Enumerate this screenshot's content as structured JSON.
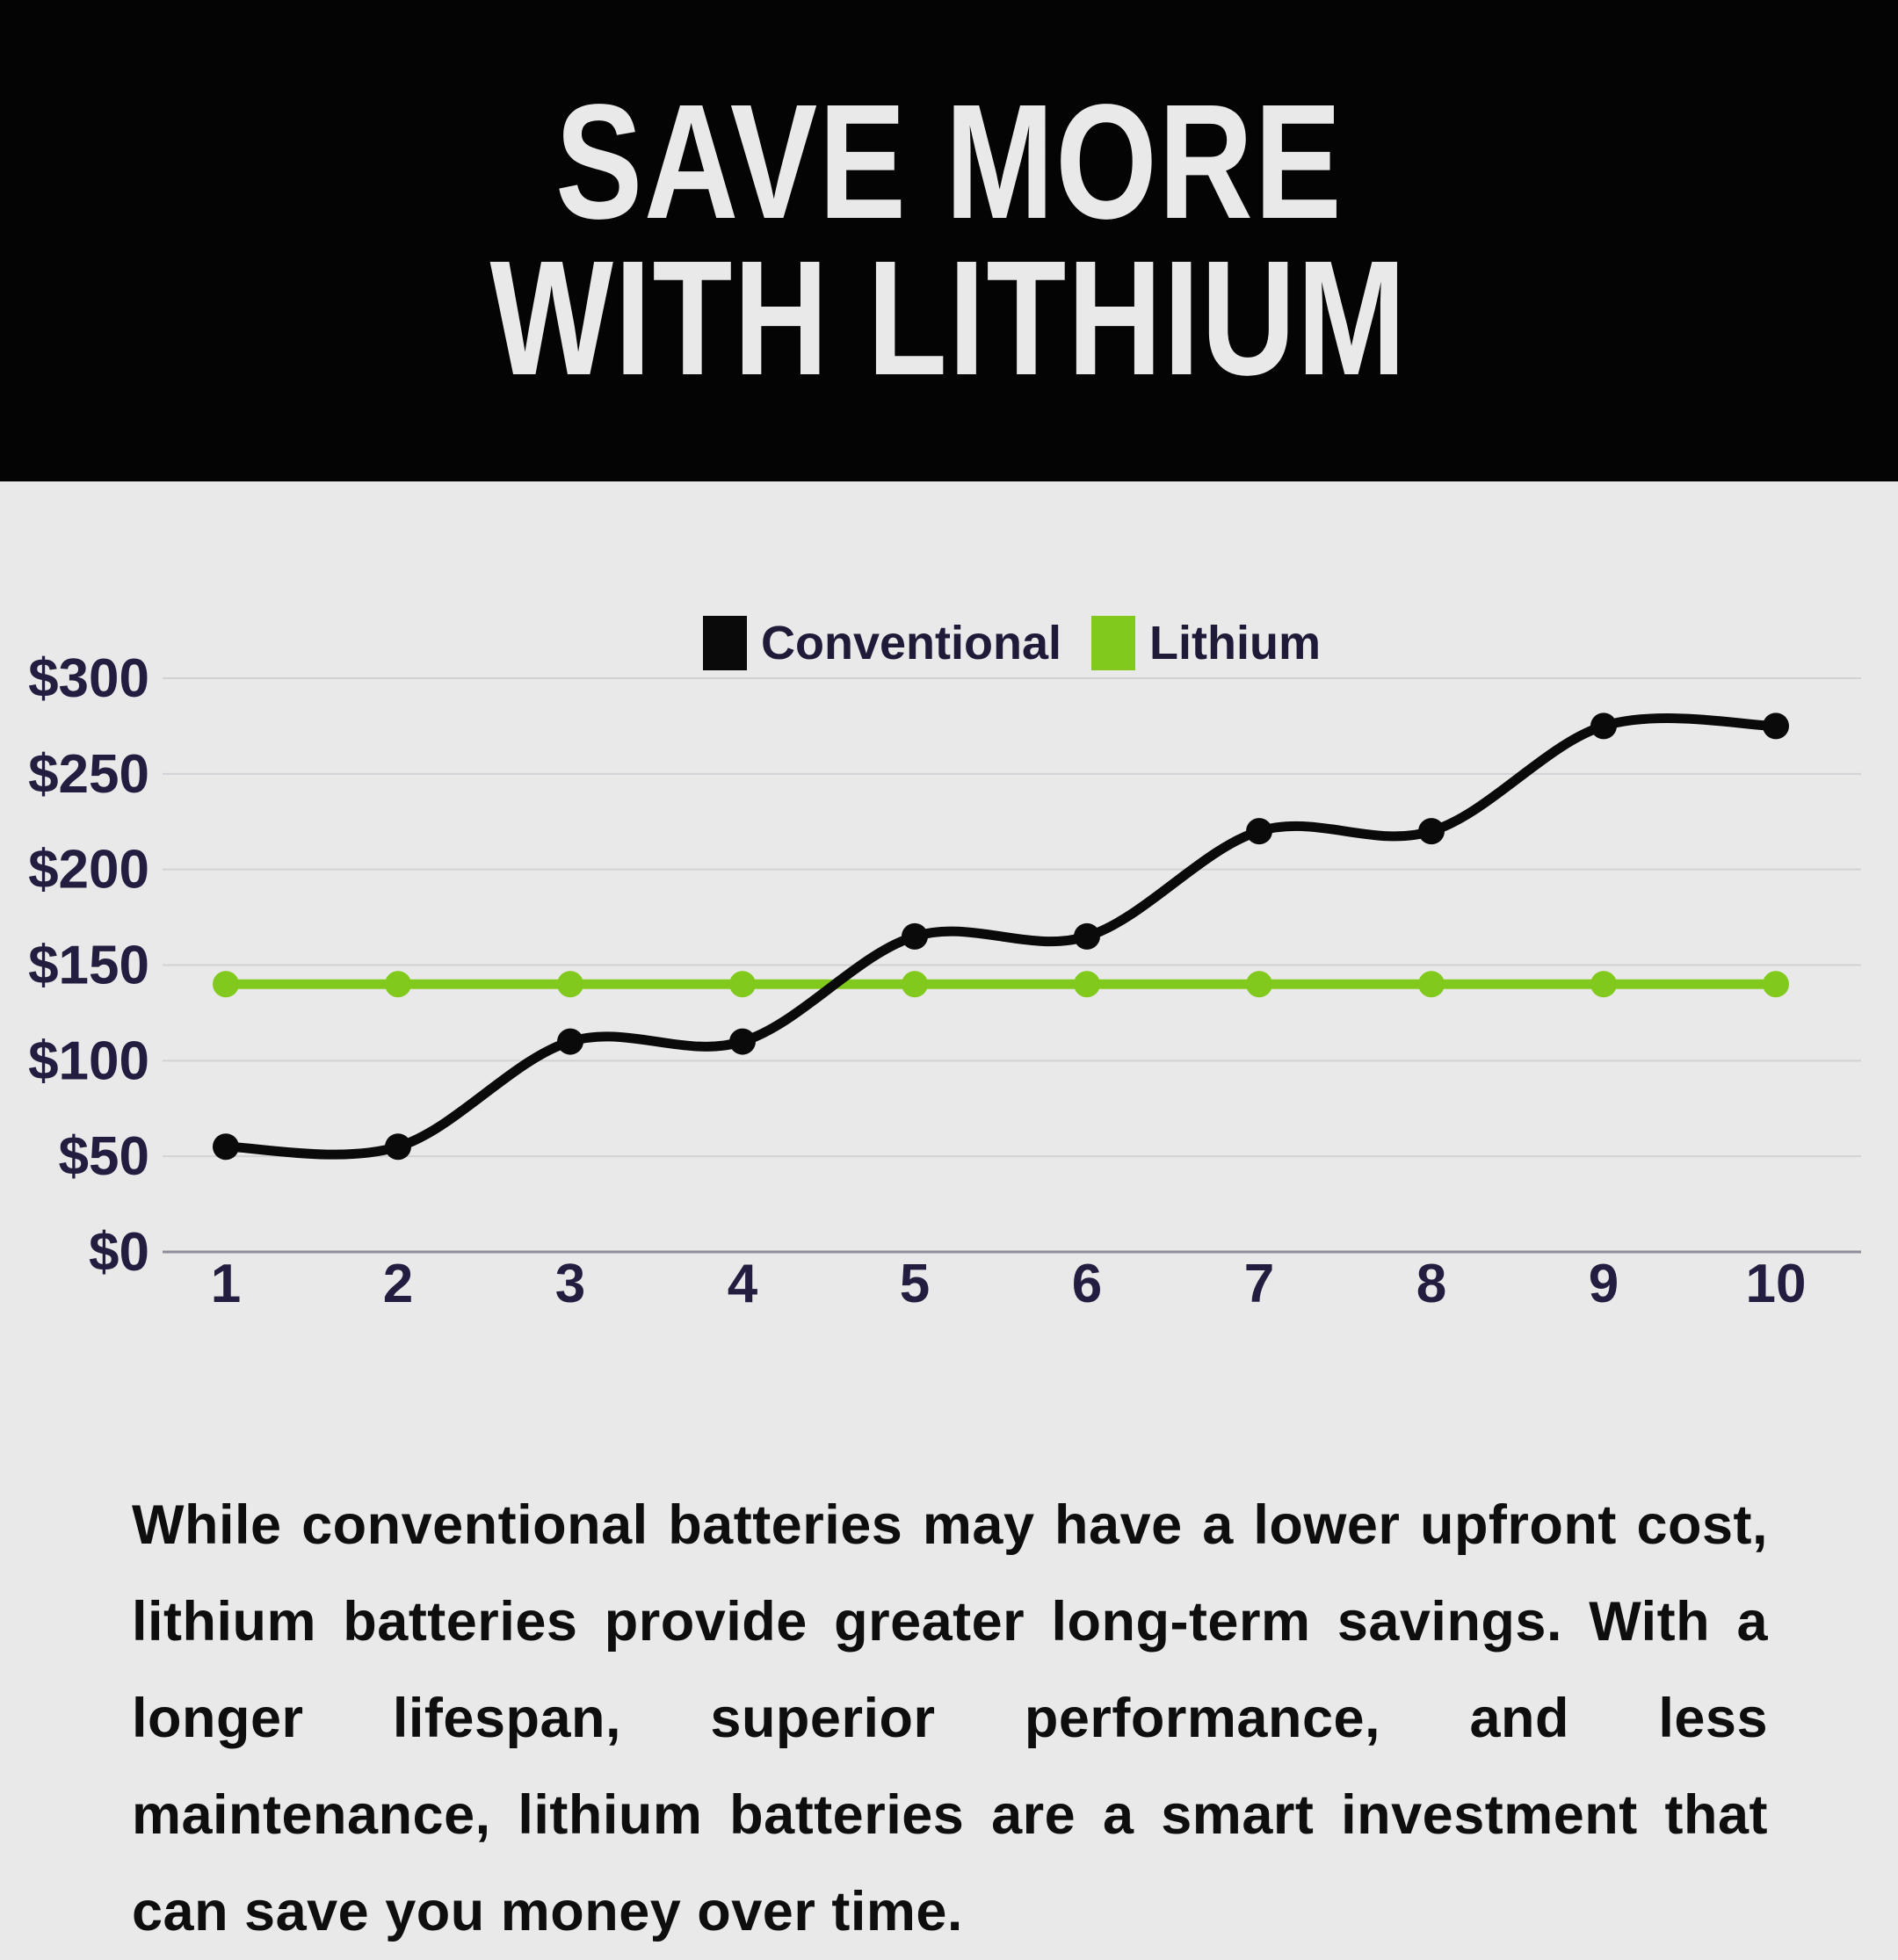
{
  "header": {
    "title_line1": "SAVE MORE",
    "title_line2": "WITH LITHIUM"
  },
  "legend": [
    {
      "label": "Conventional",
      "color": "#0a0a0a"
    },
    {
      "label": "Lithium",
      "color": "#82c91e"
    }
  ],
  "chart_data": {
    "type": "line",
    "x": [
      1,
      2,
      3,
      4,
      5,
      6,
      7,
      8,
      9,
      10
    ],
    "series": [
      {
        "name": "Conventional",
        "color": "#0a0a0a",
        "values": [
          55,
          55,
          110,
          110,
          165,
          165,
          220,
          220,
          275,
          275
        ]
      },
      {
        "name": "Lithium",
        "color": "#82c91e",
        "values": [
          140,
          140,
          140,
          140,
          140,
          140,
          140,
          140,
          140,
          140
        ]
      }
    ],
    "y_ticks": [
      0,
      50,
      100,
      150,
      200,
      250,
      300
    ],
    "y_tick_labels": [
      "$0",
      "$50",
      "$100",
      "$150",
      "$200",
      "$250",
      "$300"
    ],
    "ylim": [
      0,
      300
    ],
    "xlabel": "",
    "ylabel": "",
    "title": "",
    "grid": true,
    "smooth": true,
    "legend_position": "top-center"
  },
  "body": {
    "paragraph": "While conventional batteries may have a lower upfront cost, lithium batteries provide greater long-term savings. With a longer lifespan, superior performance, and less maintenance, lithium batteries are a smart investment that can save you money over time."
  },
  "colors": {
    "background": "#e9e9e9",
    "header_bg": "#040404",
    "title_text": "#e9e9e9",
    "axis_label": "#231d40",
    "gridline": "#d2d1d6",
    "axis_line": "#8f8d99",
    "legend_text": "#1f1a38",
    "body_text": "#0e0e0e"
  }
}
